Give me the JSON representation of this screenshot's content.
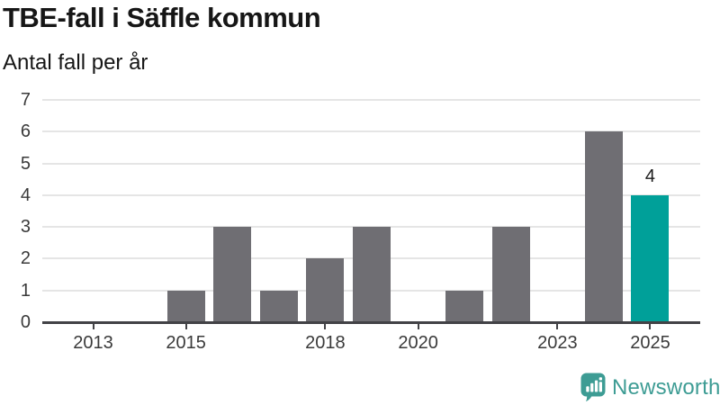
{
  "chart_data": {
    "type": "bar",
    "title": "TBE-fall i Säffle kommun",
    "subtitle": "Antal fall per år",
    "categories": [
      "2013",
      "2014",
      "2015",
      "2016",
      "2017",
      "2018",
      "2019",
      "2020",
      "2021",
      "2022",
      "2023",
      "2024",
      "2025"
    ],
    "values": [
      0,
      0,
      1,
      3,
      1,
      2,
      3,
      0,
      1,
      3,
      0,
      6,
      4
    ],
    "highlight_index": 12,
    "highlight_category": "2025",
    "value_labels": [
      {
        "category": "2025",
        "text": "4"
      }
    ],
    "ylim": [
      0,
      7
    ],
    "yticks": [
      0,
      1,
      2,
      3,
      4,
      5,
      6,
      7
    ],
    "xticks": [
      "2013",
      "2015",
      "2018",
      "2020",
      "2023",
      "2025"
    ],
    "grid": "horizontal",
    "legend": "none",
    "colors": {
      "bar": "#6f6e73",
      "highlight": "#00a099",
      "grid": "#e5e5e5",
      "axis": "#424246",
      "tick_label": "#3a3a3a",
      "value_label": "#1a1a1a"
    }
  },
  "footer": {
    "brand": "Newsworthy",
    "logo_icon": "bar-chart-speech-bubble-icon",
    "brand_color": "#3d9c94"
  }
}
